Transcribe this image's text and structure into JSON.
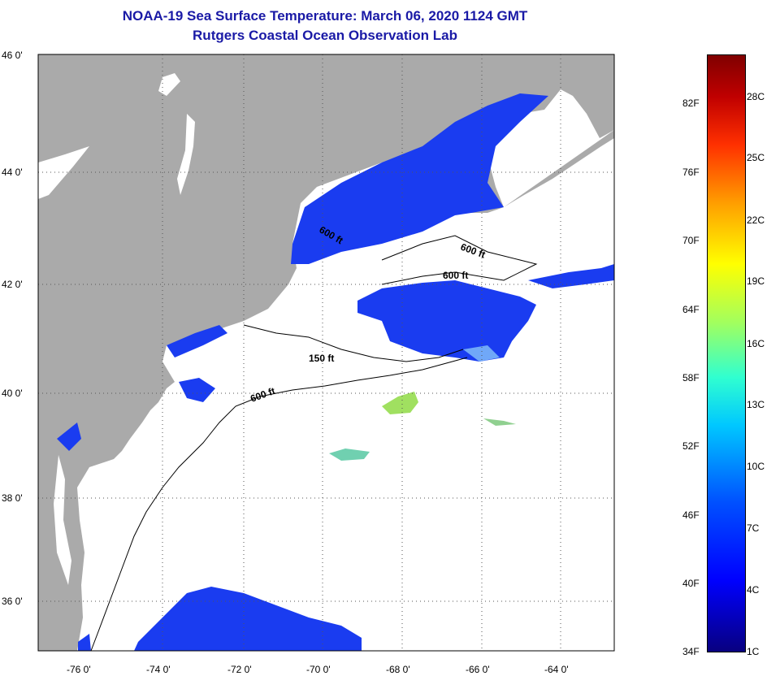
{
  "title": {
    "line1": "NOAA-19 Sea Surface Temperature:  March 06, 2020 1124 GMT",
    "line2": "Rutgers Coastal Ocean Observation Lab"
  },
  "map": {
    "lat_labels": [
      "46 0'",
      "44 0'",
      "42 0'",
      "40 0'",
      "38 0'",
      "36 0'"
    ],
    "lon_labels": [
      "-76 0'",
      "-74 0'",
      "-72 0'",
      "-70 0'",
      "-68 0'",
      "-66 0'",
      "-64 0'"
    ],
    "contour_labels": [
      "600 ft",
      "600 ft",
      "600 ft",
      "150 ft",
      "600 ft"
    ],
    "colors": {
      "land": "#aaaaaa",
      "ocean_nodata": "#ffffff",
      "sst_cold": "#1a3cf0"
    }
  },
  "colorbar": {
    "fahrenheit": [
      "82F",
      "76F",
      "70F",
      "64F",
      "58F",
      "52F",
      "46F",
      "40F",
      "34F"
    ],
    "celsius": [
      "28C",
      "25C",
      "22C",
      "19C",
      "16C",
      "13C",
      "10C",
      "7C",
      "4C",
      "1C"
    ]
  }
}
